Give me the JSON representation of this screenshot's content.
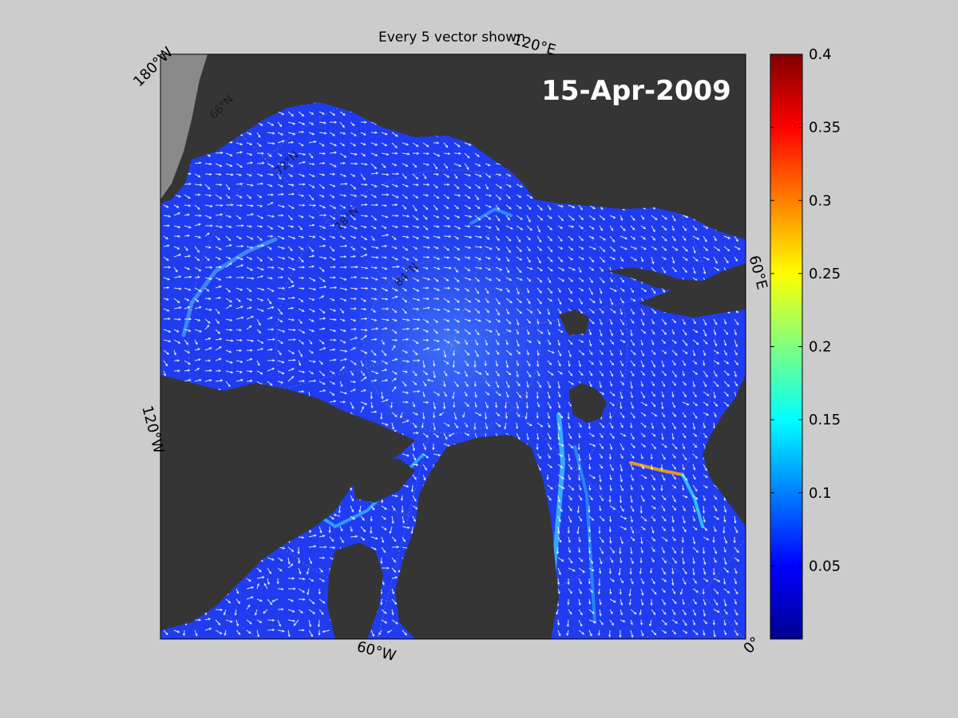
{
  "title": "Every 5 vector shown",
  "date_label": "15-Apr-2009",
  "meridian_labels": [
    "180°W",
    "120°E",
    "60°E",
    "0°",
    "60°W",
    "120°W"
  ],
  "latitude_labels": [
    "66°N",
    "72°N",
    "78°N",
    "84°N"
  ],
  "colorbar": {
    "ticks": [
      0.05,
      0.1,
      0.15,
      0.2,
      0.25,
      0.3,
      0.35,
      0.4
    ],
    "range": [
      0,
      0.4
    ],
    "colormap": "jet"
  },
  "colors": {
    "background": "#cccccc",
    "land": "#353535",
    "ocean_base": "#1f3cf0",
    "vectors": "#ffffff"
  }
}
